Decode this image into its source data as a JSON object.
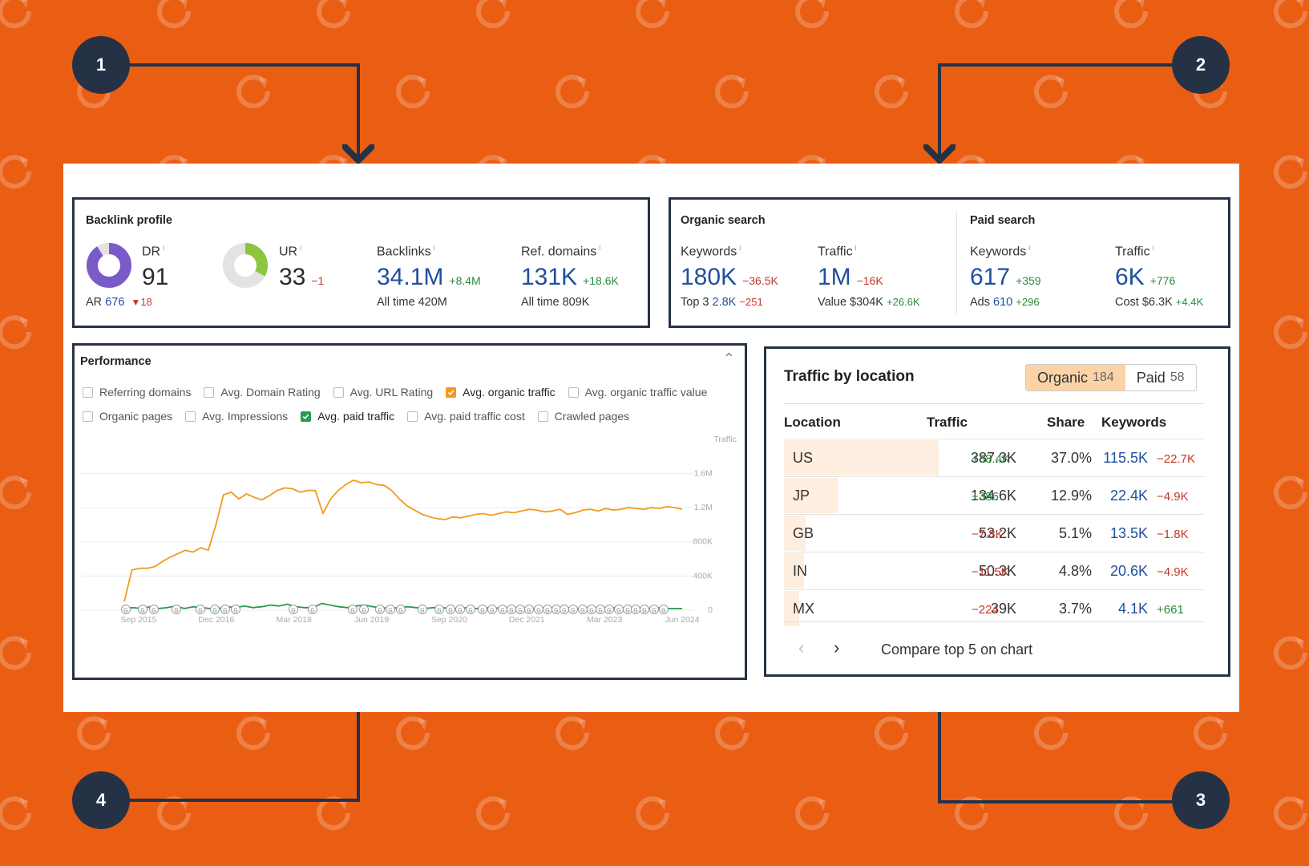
{
  "callouts": [
    "1",
    "2",
    "3",
    "4"
  ],
  "brand_color": "#ea5e14",
  "backlink": {
    "title": "Backlink profile",
    "dr": {
      "label": "DR",
      "info": "i",
      "value": "91",
      "ring_fill": 0.91
    },
    "ar": {
      "label": "AR",
      "value": "676",
      "delta": "18"
    },
    "ur": {
      "label": "UR",
      "info": "i",
      "value": "33",
      "delta": "−1",
      "ring_fill": 0.33
    },
    "backlinks": {
      "label": "Backlinks",
      "info": "i",
      "value": "34.1M",
      "delta": "+8.4M",
      "sub_label": "All time",
      "sub_value": "420M"
    },
    "refdomains": {
      "label": "Ref. domains",
      "info": "i",
      "value": "131K",
      "delta": "+18.6K",
      "sub_label": "All time",
      "sub_value": "809K"
    }
  },
  "organic": {
    "title": "Organic search",
    "keywords": {
      "label": "Keywords",
      "info": "i",
      "value": "180K",
      "delta": "−36.5K",
      "sub_label": "Top 3",
      "sub_value": "2.8K",
      "sub_delta": "−251"
    },
    "traffic": {
      "label": "Traffic",
      "info": "i",
      "value": "1M",
      "delta": "−16K",
      "sub_label": "Value",
      "sub_value": "$304K",
      "sub_delta": "+26.6K"
    }
  },
  "paid": {
    "title": "Paid search",
    "keywords": {
      "label": "Keywords",
      "info": "i",
      "value": "617",
      "delta": "+359",
      "sub_label": "Ads",
      "sub_value": "610",
      "sub_delta": "+296"
    },
    "traffic": {
      "label": "Traffic",
      "info": "i",
      "value": "6K",
      "delta": "+776",
      "sub_label": "Cost",
      "sub_value": "$6.3K",
      "sub_delta": "+4.4K"
    }
  },
  "performance": {
    "title": "Performance",
    "row1": [
      {
        "label": "Referring domains",
        "checked": false
      },
      {
        "label": "Avg. Domain Rating",
        "checked": false
      },
      {
        "label": "Avg. URL Rating",
        "checked": false
      },
      {
        "label": "Avg. organic traffic",
        "checked": true,
        "color": "#f39a1f"
      },
      {
        "label": "Avg. organic traffic value",
        "checked": false
      }
    ],
    "row2": [
      {
        "label": "Organic pages",
        "checked": false
      },
      {
        "label": "Avg. Impressions",
        "checked": false
      },
      {
        "label": "Avg. paid traffic",
        "checked": true,
        "color": "#2b9a4e"
      },
      {
        "label": "Avg. paid traffic cost",
        "checked": false
      },
      {
        "label": "Crawled pages",
        "checked": false
      }
    ]
  },
  "chart_data": {
    "type": "line",
    "ylabel": "Traffic",
    "ylim": [
      0,
      1800000
    ],
    "yticks": [
      "1.6M",
      "1.2M",
      "800K",
      "400K",
      "0"
    ],
    "ytick_values": [
      1600000,
      1200000,
      800000,
      400000,
      0
    ],
    "xticks": [
      "Sep 2015",
      "Dec 2016",
      "Mar 2018",
      "Jun 2019",
      "Sep 2020",
      "Dec 2021",
      "Mar 2023",
      "Jun 2024"
    ],
    "series": [
      {
        "name": "Avg. organic traffic",
        "color": "#f39a1f",
        "values": [
          100000,
          470000,
          490000,
          490000,
          510000,
          570000,
          620000,
          660000,
          700000,
          680000,
          730000,
          700000,
          1000000,
          1350000,
          1380000,
          1300000,
          1360000,
          1320000,
          1290000,
          1340000,
          1400000,
          1430000,
          1420000,
          1380000,
          1400000,
          1400000,
          1130000,
          1300000,
          1400000,
          1470000,
          1520000,
          1490000,
          1500000,
          1470000,
          1460000,
          1400000,
          1300000,
          1220000,
          1170000,
          1120000,
          1090000,
          1070000,
          1060000,
          1090000,
          1080000,
          1100000,
          1120000,
          1130000,
          1110000,
          1130000,
          1150000,
          1140000,
          1160000,
          1180000,
          1170000,
          1150000,
          1160000,
          1180000,
          1120000,
          1140000,
          1170000,
          1180000,
          1160000,
          1190000,
          1170000,
          1180000,
          1200000,
          1190000,
          1180000,
          1200000,
          1190000,
          1210000,
          1200000,
          1180000
        ]
      },
      {
        "name": "Avg. paid traffic",
        "color": "#2b9a4e",
        "values": [
          20000,
          30000,
          20000,
          40000,
          20000,
          30000,
          50000,
          20000,
          40000,
          30000,
          20000,
          20000,
          40000,
          30000,
          50000,
          30000,
          40000,
          60000,
          50000,
          70000,
          40000,
          30000,
          30000,
          80000,
          60000,
          40000,
          30000,
          50000,
          60000,
          40000,
          30000,
          20000,
          30000,
          40000,
          30000,
          20000,
          30000,
          30000,
          20000,
          20000,
          30000,
          20000,
          30000,
          20000,
          30000,
          20000,
          20000,
          30000,
          20000,
          20000,
          30000,
          20000,
          30000,
          20000,
          30000,
          20000,
          20000,
          30000,
          20000,
          20000,
          20000,
          20000,
          30000,
          20000,
          20000,
          20000
        ]
      }
    ],
    "annotation_marker": "G"
  },
  "location": {
    "title": "Traffic by location",
    "toggle": {
      "organic_label": "Organic",
      "organic_count": "184",
      "paid_label": "Paid",
      "paid_count": "58"
    },
    "headers": {
      "location": "Location",
      "traffic": "Traffic",
      "share": "Share",
      "keywords": "Keywords"
    },
    "rows": [
      {
        "loc": "US",
        "traffic": "387.3K",
        "traffic_delta": "+38.4K",
        "up": true,
        "share": "37.0%",
        "share_fraction": 0.37,
        "kw": "115.5K",
        "kw_delta": "−22.7K",
        "kw_up": false
      },
      {
        "loc": "JP",
        "traffic": "134.6K",
        "traffic_delta": "+386",
        "up": true,
        "share": "12.9%",
        "share_fraction": 0.129,
        "kw": "22.4K",
        "kw_delta": "−4.9K",
        "kw_up": false
      },
      {
        "loc": "GB",
        "traffic": "53.2K",
        "traffic_delta": "−7.8K",
        "up": false,
        "share": "5.1%",
        "share_fraction": 0.051,
        "kw": "13.5K",
        "kw_delta": "−1.8K",
        "kw_up": false
      },
      {
        "loc": "IN",
        "traffic": "50.3K",
        "traffic_delta": "−11.5K",
        "up": false,
        "share": "4.8%",
        "share_fraction": 0.048,
        "kw": "20.6K",
        "kw_delta": "−4.9K",
        "kw_up": false
      },
      {
        "loc": "MX",
        "traffic": "39K",
        "traffic_delta": "−224",
        "up": false,
        "share": "3.7%",
        "share_fraction": 0.037,
        "kw": "4.1K",
        "kw_delta": "+661",
        "kw_up": true
      }
    ],
    "compare_label": "Compare top 5 on chart"
  }
}
